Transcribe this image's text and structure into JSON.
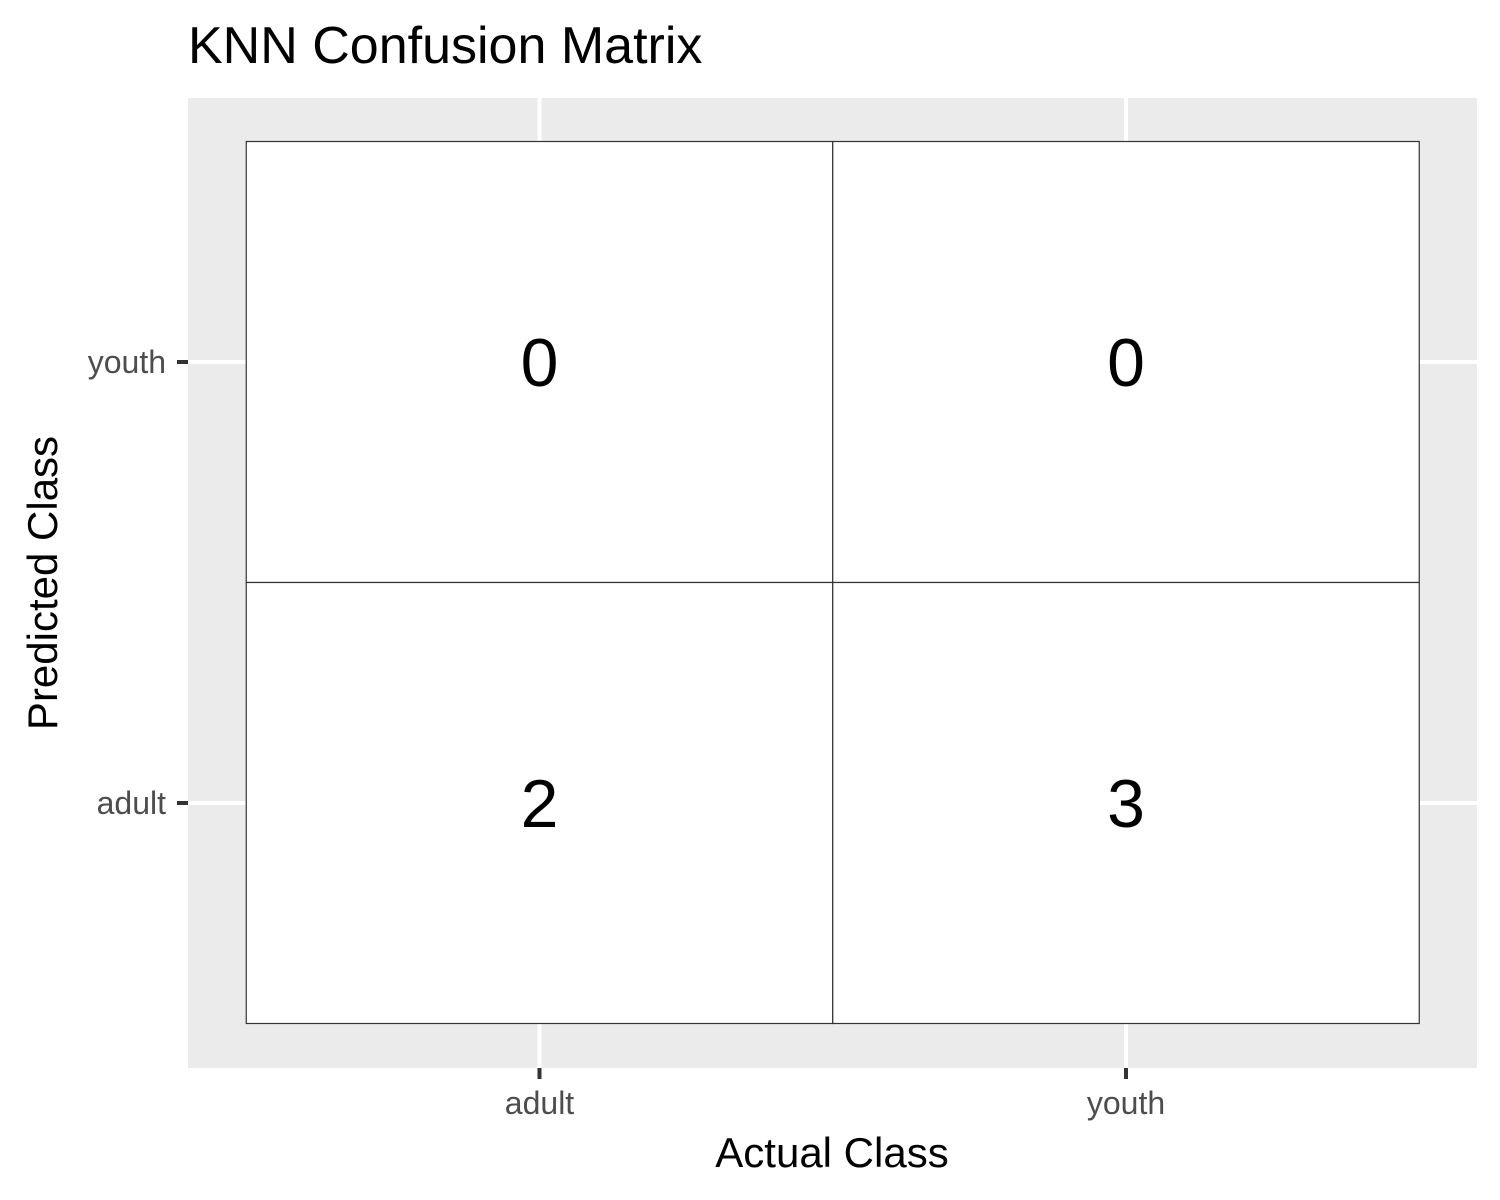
{
  "chart_data": {
    "type": "heatmap",
    "title": "KNN Confusion Matrix",
    "xlabel": "Actual Class",
    "ylabel": "Predicted Class",
    "x_categories": [
      "adult",
      "youth"
    ],
    "y_categories": [
      "adult",
      "youth"
    ],
    "cells": [
      {
        "actual": "adult",
        "predicted": "youth",
        "value": 0
      },
      {
        "actual": "youth",
        "predicted": "youth",
        "value": 0
      },
      {
        "actual": "adult",
        "predicted": "adult",
        "value": 2
      },
      {
        "actual": "youth",
        "predicted": "adult",
        "value": 3
      }
    ],
    "fill_color": "#ffffff",
    "panel_background": "#ebebeb",
    "grid_color": "#ffffff",
    "border_color": "#333333",
    "legend": "none"
  }
}
